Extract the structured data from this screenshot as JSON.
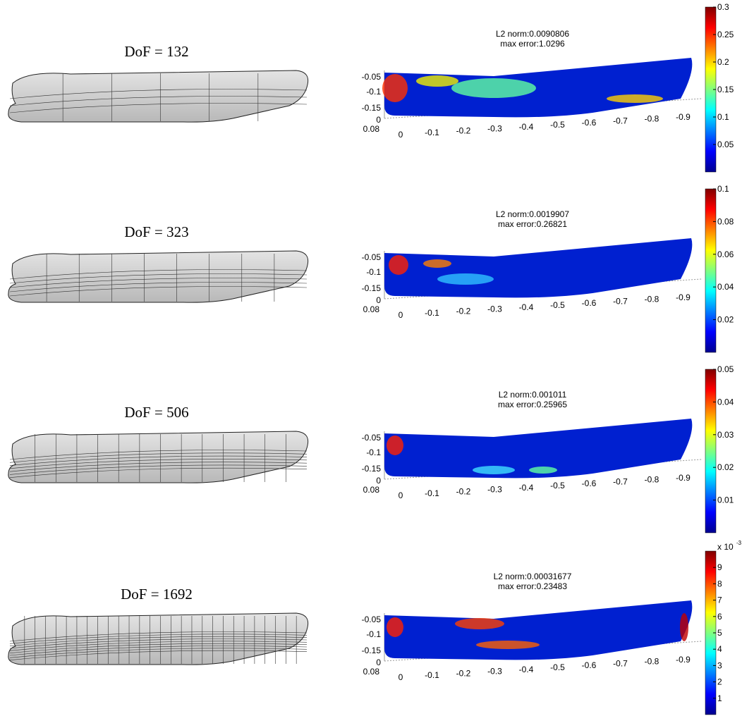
{
  "rows": [
    {
      "dof": "DoF = 132",
      "l2_norm": "L2 norm:0.0090806",
      "max_error": "max error:1.0296",
      "colorbar": {
        "ylim": [
          0,
          0.3
        ],
        "ticks": [
          0.05,
          0.1,
          0.15,
          0.2,
          0.25,
          0.3
        ]
      }
    },
    {
      "dof": "DoF = 323",
      "l2_norm": "L2 norm:0.0019907",
      "max_error": "max error:0.26821",
      "colorbar": {
        "ylim": [
          0,
          0.1
        ],
        "ticks": [
          0.02,
          0.04,
          0.06,
          0.08,
          0.1
        ]
      }
    },
    {
      "dof": "DoF = 506",
      "l2_norm": "L2 norm:0.001011",
      "max_error": "max error:0.25965",
      "colorbar": {
        "ylim": [
          0,
          0.05
        ],
        "ticks": [
          0.01,
          0.02,
          0.03,
          0.04,
          0.05
        ]
      }
    },
    {
      "dof": "DoF = 1692",
      "l2_norm": "L2 norm:0.00031677",
      "max_error": "max error:0.23483",
      "colorbar": {
        "ylim": [
          0,
          10
        ],
        "ticks": [
          1,
          2,
          3,
          4,
          5,
          6,
          7,
          8,
          9
        ],
        "multiplier": "x 10",
        "exponent": "-3"
      }
    }
  ],
  "y_ticks": [
    "-0.05",
    "-0.1",
    "-0.15",
    "0"
  ],
  "z_tick": "0.08",
  "x_ticks": [
    "0",
    "-0.1",
    "-0.2",
    "-0.3",
    "-0.4",
    "-0.5",
    "-0.6",
    "-0.7",
    "-0.8",
    "-0.9"
  ]
}
